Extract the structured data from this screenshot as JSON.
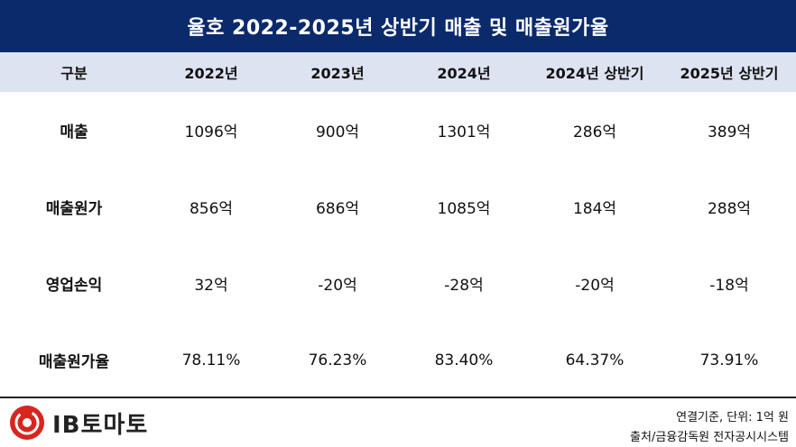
{
  "title": "율호 2022-2025년 상반기 매출 및 매출원가율",
  "chart_data": {
    "type": "table",
    "title": "율호 2022-2025년 상반기 매출 및 매출원가율",
    "columns": [
      "구분",
      "2022년",
      "2023년",
      "2024년",
      "2024년 상반기",
      "2025년 상반기"
    ],
    "rows": [
      {
        "label": "매출",
        "values": [
          "1096억",
          "900억",
          "1301억",
          "286억",
          "389억"
        ]
      },
      {
        "label": "매출원가",
        "values": [
          "856억",
          "686억",
          "1085억",
          "184억",
          "288억"
        ]
      },
      {
        "label": "영업손익",
        "values": [
          "32억",
          "-20억",
          "-28억",
          "-20억",
          "-18억"
        ]
      },
      {
        "label": "매출원가율",
        "values": [
          "78.11%",
          "76.23%",
          "83.40%",
          "64.37%",
          "73.91%"
        ]
      }
    ]
  },
  "footer": {
    "logo_text": "IB토마토",
    "logo_icon": "ib-tomato-logo-icon",
    "note_basis": "연결기준, 단위: 1억 원",
    "note_source": "출처/금융감독원 전자공시시스템"
  },
  "colors": {
    "title_bg": "#0b2a6b",
    "header_bg": "#dde3f1",
    "logo_red": "#d7261e"
  }
}
